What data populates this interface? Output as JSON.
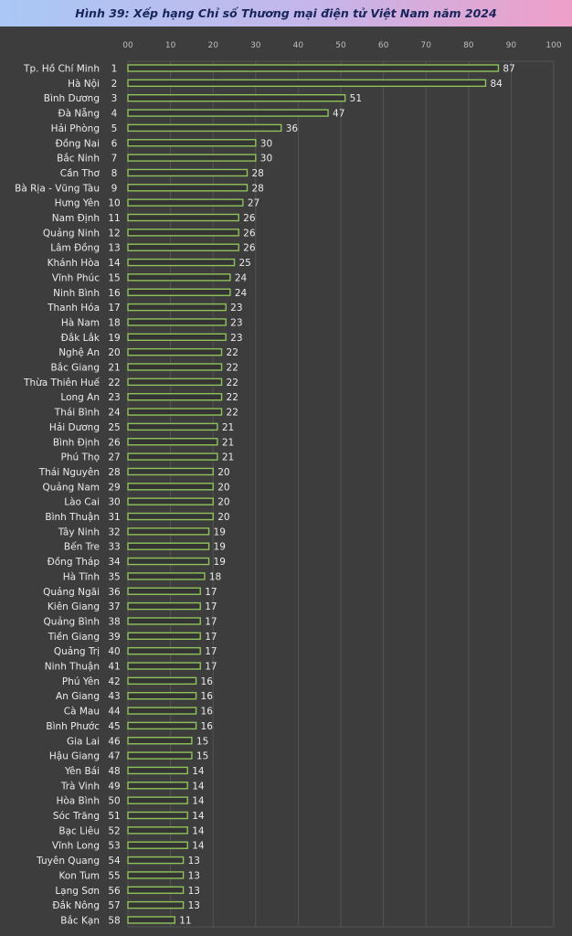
{
  "title": "Hình 39: Xếp hạng Chỉ số Thương mại điện tử Việt Nam năm 2024",
  "colors": {
    "background": "#3d3d3d",
    "bar_outline": "#8fc25a",
    "title_text": "#17255a"
  },
  "chart_data": {
    "type": "bar",
    "orientation": "horizontal",
    "title": "Hình 39: Xếp hạng Chỉ số Thương mại điện tử Việt Nam năm 2024",
    "xlim": [
      0,
      100
    ],
    "x_ticks": [
      "00",
      "10",
      "20",
      "30",
      "40",
      "50",
      "60",
      "70",
      "80",
      "90",
      "100"
    ],
    "grid": true,
    "categories": [
      "Tp. Hồ Chí Minh",
      "Hà Nội",
      "Bình Dương",
      "Đà Nẵng",
      "Hải Phòng",
      "Đồng Nai",
      "Bắc Ninh",
      "Cần Thơ",
      "Bà Rịa - Vũng Tàu",
      "Hưng Yên",
      "Nam Định",
      "Quảng Ninh",
      "Lâm Đồng",
      "Khánh Hòa",
      "Vĩnh Phúc",
      "Ninh Bình",
      "Thanh Hóa",
      "Hà Nam",
      "Đắk Lắk",
      "Nghệ An",
      "Bắc Giang",
      "Thừa Thiên Huế",
      "Long An",
      "Thái Bình",
      "Hải Dương",
      "Bình Định",
      "Phú Thọ",
      "Thái Nguyên",
      "Quảng Nam",
      "Lào Cai",
      "Bình Thuận",
      "Tây Ninh",
      "Bến Tre",
      "Đồng Tháp",
      "Hà Tĩnh",
      "Quảng Ngãi",
      "Kiên Giang",
      "Quảng Bình",
      "Tiền Giang",
      "Quảng Trị",
      "Ninh Thuận",
      "Phú Yên",
      "An Giang",
      "Cà Mau",
      "Bình Phước",
      "Gia Lai",
      "Hậu Giang",
      "Yên Bái",
      "Trà Vinh",
      "Hòa Bình",
      "Sóc Trăng",
      "Bạc Liêu",
      "Vĩnh Long",
      "Tuyên Quang",
      "Kon Tum",
      "Lạng Sơn",
      "Đắk Nông",
      "Bắc Kạn"
    ],
    "ranks": [
      "1",
      "2",
      "3",
      "4",
      "5",
      "6",
      "7",
      "8",
      "9",
      "10",
      "11",
      "12",
      "13",
      "14",
      "15",
      "16",
      "17",
      "18",
      "19",
      "20",
      "21",
      "22",
      "23",
      "24",
      "25",
      "26",
      "27",
      "28",
      "29",
      "30",
      "31",
      "32",
      "33",
      "34",
      "35",
      "36",
      "37",
      "38",
      "39",
      "40",
      "41",
      "42",
      "43",
      "44",
      "45",
      "46",
      "47",
      "48",
      "49",
      "50",
      "51",
      "52",
      "53",
      "54",
      "55",
      "56",
      "57",
      "58"
    ],
    "values": [
      87,
      84,
      51,
      47,
      36,
      30,
      30,
      28,
      28,
      27,
      26,
      26,
      26,
      25,
      24,
      24,
      23,
      23,
      23,
      22,
      22,
      22,
      22,
      22,
      21,
      21,
      21,
      20,
      20,
      20,
      20,
      19,
      19,
      19,
      18,
      17,
      17,
      17,
      17,
      17,
      17,
      16,
      16,
      16,
      16,
      15,
      15,
      14,
      14,
      14,
      14,
      14,
      14,
      13,
      13,
      13,
      13,
      11
    ]
  }
}
